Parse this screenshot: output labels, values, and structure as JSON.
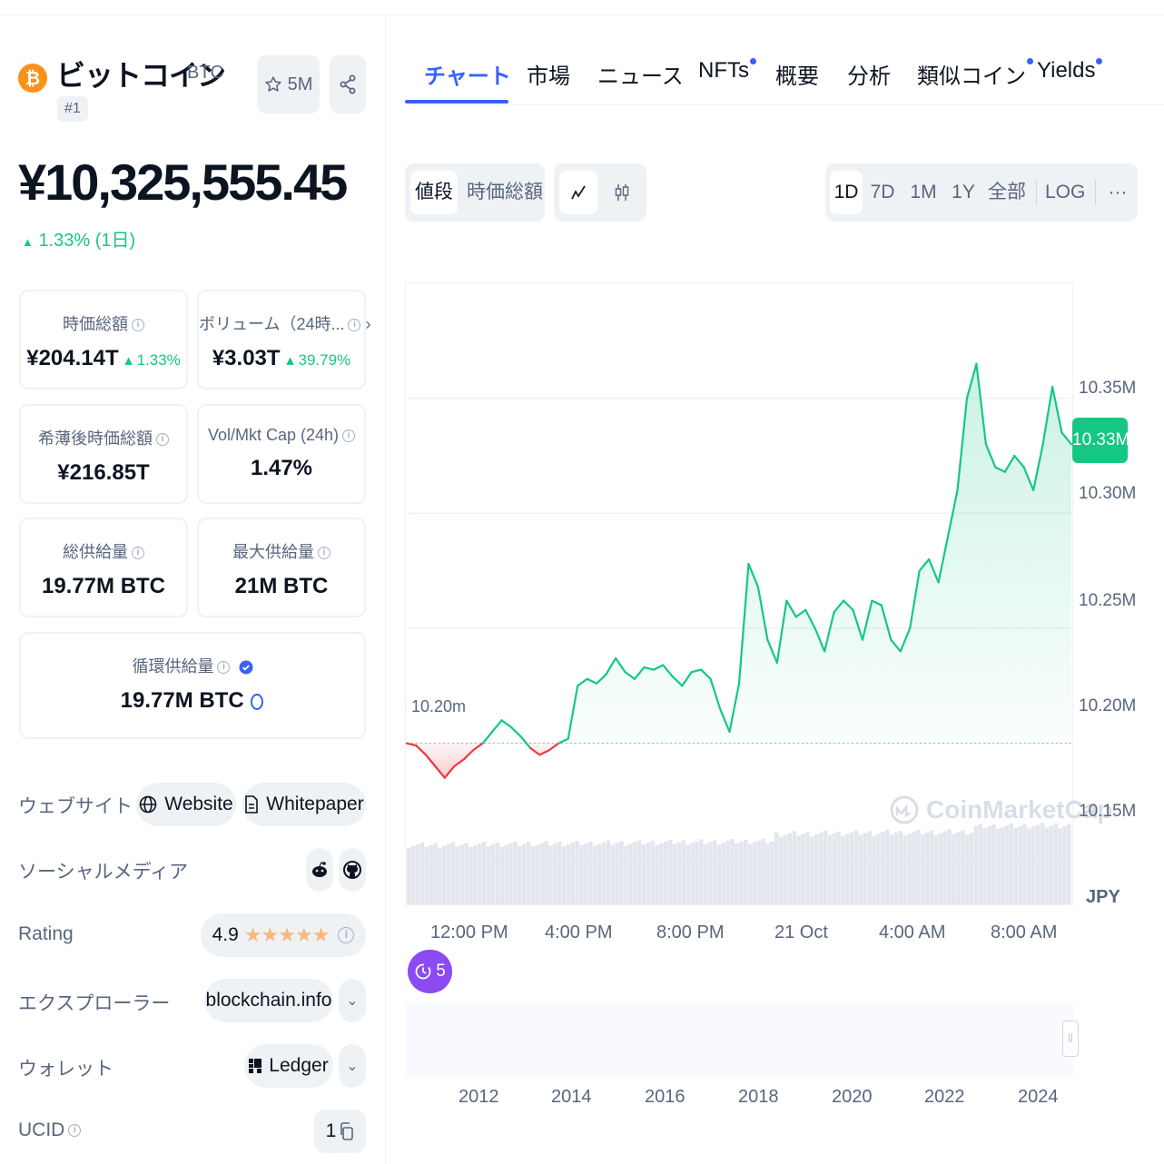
{
  "coin": {
    "name": "ビットコイン",
    "symbol": "BTC",
    "rank": "#1",
    "logo_glyph": "₿",
    "watch_count": "5M",
    "price": "¥10,325,555.45",
    "change": "1.33% (1日)"
  },
  "stats": {
    "market_cap": {
      "label": "時価総額",
      "value": "¥204.14T",
      "change": "1.33%"
    },
    "volume": {
      "label": "ボリューム（24時...",
      "value": "¥3.03T",
      "change": "39.79%"
    },
    "fdv": {
      "label": "希薄後時価総額",
      "value": "¥216.85T"
    },
    "vol_mkt_cap": {
      "label": "Vol/Mkt Cap (24h)",
      "value": "1.47%"
    },
    "total_supply": {
      "label": "総供給量",
      "value": "19.77M BTC"
    },
    "max_supply": {
      "label": "最大供給量",
      "value": "21M BTC"
    },
    "circulating_supply": {
      "label": "循環供給量",
      "value": "19.77M BTC"
    }
  },
  "links": {
    "website_label": "ウェブサイト",
    "website_btn": "Website",
    "whitepaper_btn": "Whitepaper",
    "social_label": "ソーシャルメディア",
    "rating_label": "Rating",
    "rating_value": "4.9",
    "rating_stars": 5,
    "explorer_label": "エクスプローラー",
    "explorer_value": "blockchain.info",
    "wallet_label": "ウォレット",
    "wallet_value": "Ledger",
    "ucid_label": "UCID",
    "ucid_value": "1"
  },
  "tabs": [
    {
      "label": "チャート",
      "active": true,
      "dot": false
    },
    {
      "label": "市場",
      "active": false,
      "dot": false
    },
    {
      "label": "ニュース",
      "active": false,
      "dot": false
    },
    {
      "label": "NFTs",
      "active": false,
      "dot": true
    },
    {
      "label": "概要",
      "active": false,
      "dot": false
    },
    {
      "label": "分析",
      "active": false,
      "dot": false
    },
    {
      "label": "類似コイン",
      "active": false,
      "dot": true
    },
    {
      "label": "Yields",
      "active": false,
      "dot": true
    }
  ],
  "toolbar": {
    "metric": [
      "値段",
      "時価総額"
    ],
    "ranges": [
      "1D",
      "7D",
      "1M",
      "1Y",
      "全部"
    ],
    "log": "LOG",
    "more": "···"
  },
  "chart_data": {
    "type": "line",
    "unit": "JPY",
    "x_ticks": [
      "12:00 PM",
      "4:00 PM",
      "8:00 PM",
      "21 Oct",
      "4:00 AM",
      "8:00 AM"
    ],
    "y_ticks": [
      "10.35M",
      "10.30M",
      "10.25M",
      "10.20M",
      "10.15M"
    ],
    "ylim": [
      10.13,
      10.4
    ],
    "open_label": "10.20m",
    "open_value": 10.2,
    "current_label": "10.33M",
    "current_value": 10.33,
    "series": [
      {
        "values": [
          10.2,
          10.199,
          10.195,
          10.19,
          10.185,
          10.19,
          10.193,
          10.197,
          10.2,
          10.205,
          10.21,
          10.207,
          10.203,
          10.198,
          10.195,
          10.197,
          10.2,
          10.202,
          10.225,
          10.228,
          10.226,
          10.23,
          10.237,
          10.231,
          10.228,
          10.233,
          10.232,
          10.234,
          10.229,
          10.225,
          10.231,
          10.232,
          10.228,
          10.215,
          10.205,
          10.226,
          10.278,
          10.268,
          10.245,
          10.235,
          10.262,
          10.255,
          10.258,
          10.25,
          10.24,
          10.257,
          10.262,
          10.258,
          10.245,
          10.262,
          10.26,
          10.245,
          10.24,
          10.25,
          10.275,
          10.28,
          10.27,
          10.29,
          10.31,
          10.35,
          10.365,
          10.33,
          10.32,
          10.318,
          10.325,
          10.32,
          10.31,
          10.33,
          10.355,
          10.335,
          10.33
        ]
      }
    ],
    "volume_bars": 150,
    "nav_years": [
      "2012",
      "2014",
      "2016",
      "2018",
      "2020",
      "2022",
      "2024"
    ]
  },
  "watermark": "CoinMarketCap",
  "events_count": "5",
  "colors": {
    "up": "#16c784",
    "down": "#ea3943",
    "accent": "#3861fb",
    "bitcoin": "#f7931a",
    "events": "#8b4af2"
  }
}
